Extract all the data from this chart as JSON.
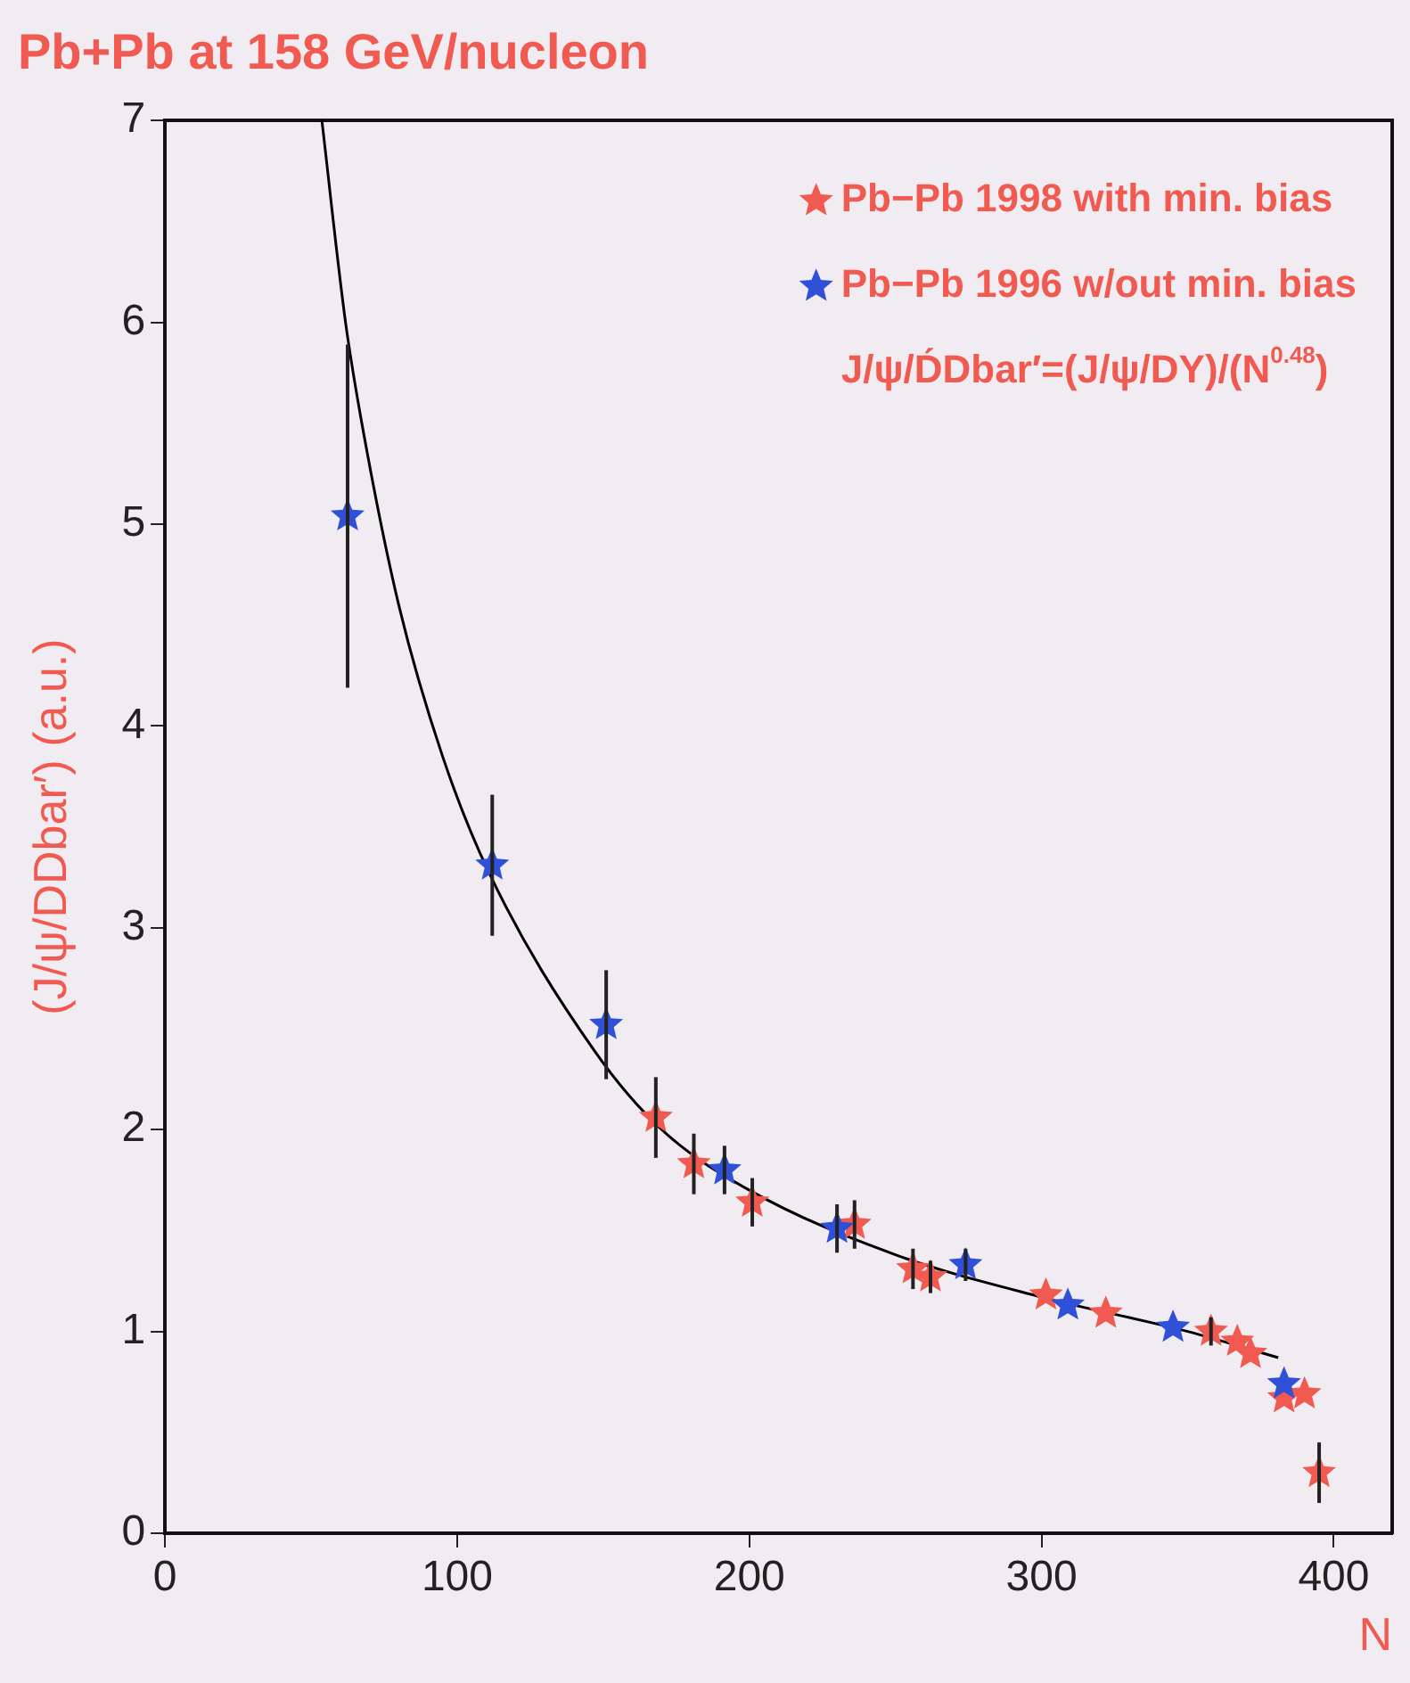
{
  "chart_data": {
    "type": "scatter",
    "title": "Pb+Pb at 158 GeV/nucleon",
    "xlabel": "N",
    "ylabel": "(J/ψ/DDbar′) (a.u.)",
    "annotations": [
      "J/ψ/D́Dbar′=(J/ψ/DY)/(N$^{0.48}$)"
    ],
    "xlim": [
      0,
      420
    ],
    "xticks": [
      0,
      100,
      200,
      300,
      400
    ],
    "ylim": [
      0,
      7
    ],
    "yticks": [
      0,
      1,
      2,
      3,
      4,
      5,
      6,
      7
    ],
    "grid": false,
    "legend": "top right",
    "marker": "star",
    "series": [
      {
        "name": "Pb−Pb 1998 with min. bias",
        "color": "#f05a50",
        "x": [
          168,
          181,
          201,
          236,
          256,
          262,
          301.5,
          322,
          358,
          367,
          371.5,
          383,
          390,
          395
        ],
        "values": [
          2.06,
          1.83,
          1.64,
          1.53,
          1.31,
          1.27,
          1.18,
          1.09,
          1.0,
          0.95,
          0.89,
          0.67,
          0.69,
          0.3
        ],
        "errors": [
          0.2,
          0.15,
          0.12,
          0.12,
          0.1,
          0.08,
          null,
          null,
          0.07,
          null,
          null,
          null,
          null,
          0.15
        ]
      },
      {
        "name": "Pb−Pb 1996 w/out min. bias",
        "color": "#3050d8",
        "x": [
          62.5,
          112,
          151,
          191.5,
          230,
          274,
          309,
          345,
          383
        ],
        "values": [
          5.04,
          3.31,
          2.52,
          1.8,
          1.51,
          1.33,
          1.13,
          1.02,
          0.74
        ],
        "errors": [
          0.85,
          0.35,
          0.27,
          0.12,
          0.12,
          0.08,
          null,
          null,
          null
        ]
      },
      {
        "type": "line",
        "color": "#000000",
        "marker": "none",
        "x": [
          53.7,
          61.8,
          68,
          80,
          95,
          111,
          147,
          170,
          200,
          250,
          300,
          350,
          381
        ],
        "values": [
          7,
          6,
          5.45,
          4.6,
          3.85,
          3.27,
          2.39,
          2.0,
          1.7,
          1.38,
          1.17,
          1.0,
          0.87
        ]
      }
    ]
  }
}
